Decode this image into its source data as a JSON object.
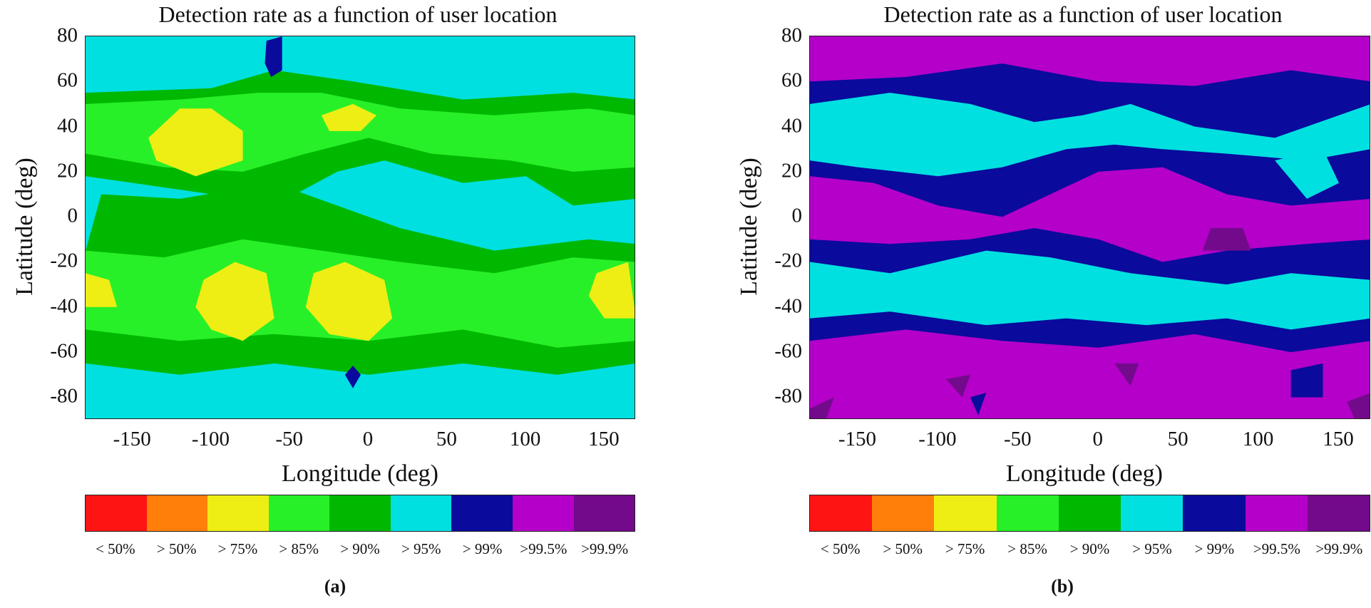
{
  "colors": {
    "lt50": "#ff1414",
    "gt50": "#ff7f0a",
    "gt75": "#eeee14",
    "gt85": "#28f028",
    "gt90": "#00b800",
    "gt95": "#00e0e0",
    "gt99": "#0a0a9c",
    "gt995": "#b400c8",
    "gt999": "#730a8c"
  },
  "colorbar": {
    "labels": [
      "< 50%",
      "> 50%",
      "> 75%",
      "> 85%",
      "> 90%",
      "> 95%",
      "> 99%",
      ">99.5%",
      ">99.9%"
    ],
    "keys": [
      "lt50",
      "gt50",
      "gt75",
      "gt85",
      "gt90",
      "gt95",
      "gt99",
      "gt995",
      "gt999"
    ]
  },
  "chart_data": [
    {
      "type": "heatmap",
      "caption": "(a)",
      "title": "Detection rate as a function of user location",
      "xlabel": "Longitude (deg)",
      "ylabel": "Latitude (deg)",
      "xlim": [
        -180,
        170
      ],
      "ylim": [
        -90,
        80
      ],
      "xticks": [
        "-150",
        "-100",
        "-50",
        "0",
        "50",
        "100",
        "150"
      ],
      "yticks": [
        "80",
        "60",
        "40",
        "20",
        "0",
        "-20",
        "-40",
        "-60",
        "-80"
      ],
      "background_class": "gt95",
      "regions": [
        {
          "class": "gt90",
          "points": [
            [
              -180,
              55
            ],
            [
              -100,
              57
            ],
            [
              -60,
              65
            ],
            [
              -10,
              60
            ],
            [
              60,
              52
            ],
            [
              130,
              55
            ],
            [
              170,
              52
            ],
            [
              170,
              8
            ],
            [
              130,
              5
            ],
            [
              100,
              18
            ],
            [
              60,
              15
            ],
            [
              10,
              25
            ],
            [
              -20,
              20
            ],
            [
              -60,
              5
            ],
            [
              -100,
              10
            ],
            [
              -180,
              18
            ]
          ]
        },
        {
          "class": "gt85",
          "points": [
            [
              -180,
              50
            ],
            [
              -120,
              52
            ],
            [
              -70,
              55
            ],
            [
              -30,
              55
            ],
            [
              20,
              48
            ],
            [
              80,
              45
            ],
            [
              140,
              48
            ],
            [
              170,
              45
            ],
            [
              170,
              22
            ],
            [
              130,
              20
            ],
            [
              90,
              25
            ],
            [
              40,
              28
            ],
            [
              0,
              35
            ],
            [
              -40,
              28
            ],
            [
              -80,
              20
            ],
            [
              -130,
              22
            ],
            [
              -180,
              28
            ]
          ]
        },
        {
          "class": "gt90",
          "points": [
            [
              -170,
              10
            ],
            [
              -120,
              8
            ],
            [
              -60,
              15
            ],
            [
              -20,
              5
            ],
            [
              20,
              -5
            ],
            [
              80,
              -15
            ],
            [
              140,
              -10
            ],
            [
              170,
              -12
            ],
            [
              170,
              -65
            ],
            [
              120,
              -70
            ],
            [
              60,
              -65
            ],
            [
              0,
              -70
            ],
            [
              -60,
              -65
            ],
            [
              -120,
              -70
            ],
            [
              -180,
              -65
            ],
            [
              -180,
              -15
            ]
          ]
        },
        {
          "class": "gt85",
          "points": [
            [
              -180,
              -15
            ],
            [
              -130,
              -18
            ],
            [
              -80,
              -10
            ],
            [
              -30,
              -15
            ],
            [
              20,
              -20
            ],
            [
              80,
              -25
            ],
            [
              130,
              -18
            ],
            [
              170,
              -20
            ],
            [
              170,
              -55
            ],
            [
              120,
              -58
            ],
            [
              60,
              -50
            ],
            [
              0,
              -55
            ],
            [
              -60,
              -52
            ],
            [
              -120,
              -55
            ],
            [
              -180,
              -50
            ]
          ]
        },
        {
          "class": "gt75",
          "points": [
            [
              -140,
              35
            ],
            [
              -120,
              48
            ],
            [
              -100,
              48
            ],
            [
              -80,
              38
            ],
            [
              -80,
              25
            ],
            [
              -110,
              18
            ],
            [
              -135,
              25
            ]
          ]
        },
        {
          "class": "gt75",
          "points": [
            [
              -30,
              45
            ],
            [
              -10,
              50
            ],
            [
              5,
              45
            ],
            [
              -5,
              38
            ],
            [
              -25,
              38
            ]
          ]
        },
        {
          "class": "gt75",
          "points": [
            [
              -105,
              -28
            ],
            [
              -85,
              -20
            ],
            [
              -65,
              -25
            ],
            [
              -60,
              -45
            ],
            [
              -80,
              -55
            ],
            [
              -100,
              -50
            ],
            [
              -110,
              -40
            ]
          ]
        },
        {
          "class": "gt75",
          "points": [
            [
              -35,
              -25
            ],
            [
              -15,
              -20
            ],
            [
              10,
              -28
            ],
            [
              15,
              -45
            ],
            [
              0,
              -55
            ],
            [
              -25,
              -52
            ],
            [
              -40,
              -40
            ]
          ]
        },
        {
          "class": "gt75",
          "points": [
            [
              145,
              -25
            ],
            [
              165,
              -20
            ],
            [
              170,
              -45
            ],
            [
              150,
              -45
            ],
            [
              140,
              -35
            ]
          ]
        },
        {
          "class": "gt75",
          "points": [
            [
              -180,
              -25
            ],
            [
              -165,
              -28
            ],
            [
              -160,
              -40
            ],
            [
              -180,
              -40
            ]
          ]
        },
        {
          "class": "gt99",
          "points": [
            [
              -65,
              78
            ],
            [
              -55,
              80
            ],
            [
              -55,
              65
            ],
            [
              -62,
              62
            ],
            [
              -66,
              68
            ]
          ]
        },
        {
          "class": "gt99",
          "points": [
            [
              -10,
              -66
            ],
            [
              -5,
              -70
            ],
            [
              -10,
              -76
            ],
            [
              -15,
              -70
            ]
          ]
        }
      ]
    },
    {
      "type": "heatmap",
      "caption": "(b)",
      "title": "Detection rate as a function of user location",
      "xlabel": "Longitude (deg)",
      "ylabel": "Latitude (deg)",
      "xlim": [
        -180,
        170
      ],
      "ylim": [
        -90,
        80
      ],
      "xticks": [
        "-150",
        "-100",
        "-50",
        "0",
        "50",
        "100",
        "150"
      ],
      "yticks": [
        "80",
        "60",
        "40",
        "20",
        "0",
        "-20",
        "-40",
        "-60",
        "-80"
      ],
      "background_class": "gt995",
      "regions": [
        {
          "class": "gt99",
          "points": [
            [
              -180,
              60
            ],
            [
              -120,
              62
            ],
            [
              -60,
              68
            ],
            [
              0,
              60
            ],
            [
              60,
              58
            ],
            [
              120,
              65
            ],
            [
              170,
              60
            ],
            [
              170,
              -55
            ],
            [
              120,
              -60
            ],
            [
              60,
              -52
            ],
            [
              0,
              -58
            ],
            [
              -60,
              -55
            ],
            [
              -120,
              -50
            ],
            [
              -180,
              -55
            ]
          ]
        },
        {
          "class": "gt995",
          "points": [
            [
              -180,
              18
            ],
            [
              -140,
              15
            ],
            [
              -100,
              5
            ],
            [
              -60,
              0
            ],
            [
              -30,
              10
            ],
            [
              0,
              20
            ],
            [
              40,
              22
            ],
            [
              80,
              10
            ],
            [
              120,
              5
            ],
            [
              170,
              8
            ],
            [
              170,
              -10
            ],
            [
              130,
              -12
            ],
            [
              80,
              -15
            ],
            [
              40,
              -20
            ],
            [
              0,
              -10
            ],
            [
              -40,
              -5
            ],
            [
              -80,
              -10
            ],
            [
              -130,
              -12
            ],
            [
              -180,
              -10
            ]
          ]
        },
        {
          "class": "gt95",
          "points": [
            [
              -180,
              50
            ],
            [
              -130,
              55
            ],
            [
              -80,
              50
            ],
            [
              -40,
              42
            ],
            [
              -10,
              45
            ],
            [
              20,
              50
            ],
            [
              60,
              40
            ],
            [
              110,
              35
            ],
            [
              150,
              45
            ],
            [
              170,
              50
            ],
            [
              170,
              30
            ],
            [
              130,
              25
            ],
            [
              80,
              28
            ],
            [
              40,
              30
            ],
            [
              10,
              32
            ],
            [
              -20,
              30
            ],
            [
              -60,
              22
            ],
            [
              -100,
              18
            ],
            [
              -150,
              22
            ],
            [
              -180,
              25
            ]
          ]
        },
        {
          "class": "gt95",
          "points": [
            [
              -180,
              -20
            ],
            [
              -130,
              -25
            ],
            [
              -70,
              -15
            ],
            [
              -30,
              -18
            ],
            [
              20,
              -25
            ],
            [
              80,
              -30
            ],
            [
              120,
              -25
            ],
            [
              170,
              -28
            ],
            [
              170,
              -45
            ],
            [
              120,
              -50
            ],
            [
              80,
              -45
            ],
            [
              30,
              -48
            ],
            [
              -20,
              -45
            ],
            [
              -70,
              -48
            ],
            [
              -130,
              -42
            ],
            [
              -180,
              -45
            ]
          ]
        },
        {
          "class": "gt95",
          "points": [
            [
              110,
              25
            ],
            [
              140,
              30
            ],
            [
              150,
              15
            ],
            [
              130,
              8
            ]
          ]
        },
        {
          "class": "gt999",
          "points": [
            [
              70,
              -5
            ],
            [
              90,
              -5
            ],
            [
              95,
              -15
            ],
            [
              65,
              -15
            ]
          ]
        },
        {
          "class": "gt999",
          "points": [
            [
              -180,
              -85
            ],
            [
              -165,
              -80
            ],
            [
              -170,
              -90
            ],
            [
              -180,
              -90
            ]
          ]
        },
        {
          "class": "gt999",
          "points": [
            [
              -95,
              -72
            ],
            [
              -80,
              -70
            ],
            [
              -85,
              -80
            ]
          ]
        },
        {
          "class": "gt999",
          "points": [
            [
              10,
              -65
            ],
            [
              25,
              -65
            ],
            [
              20,
              -75
            ]
          ]
        },
        {
          "class": "gt999",
          "points": [
            [
              155,
              -82
            ],
            [
              170,
              -78
            ],
            [
              170,
              -90
            ],
            [
              160,
              -90
            ]
          ]
        },
        {
          "class": "gt99",
          "points": [
            [
              120,
              -68
            ],
            [
              140,
              -65
            ],
            [
              140,
              -80
            ],
            [
              120,
              -80
            ]
          ]
        },
        {
          "class": "gt99",
          "points": [
            [
              -80,
              -80
            ],
            [
              -70,
              -78
            ],
            [
              -75,
              -88
            ]
          ]
        }
      ]
    }
  ]
}
